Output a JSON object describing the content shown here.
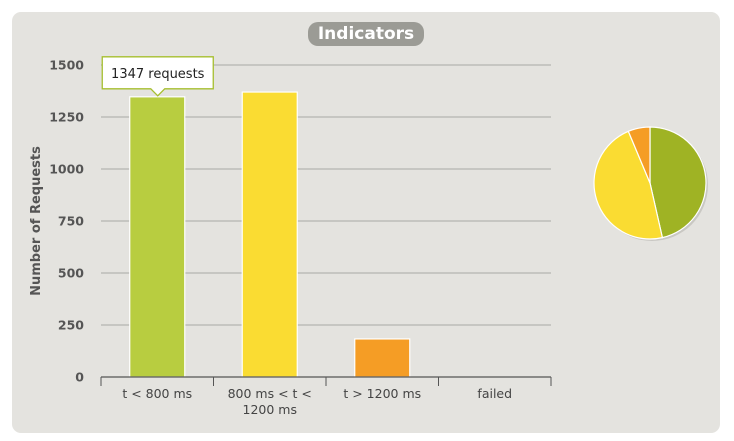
{
  "chart_data": [
    {
      "type": "bar",
      "title": "Indicators",
      "ylabel": "Number of Requests",
      "xlabel": "",
      "ylim": [
        0,
        1500
      ],
      "yticks": [
        0,
        250,
        500,
        750,
        1000,
        1250,
        1500
      ],
      "categories": [
        [
          "t < 800 ms"
        ],
        [
          "800 ms < t <",
          "1200 ms"
        ],
        [
          "t > 1200 ms"
        ],
        [
          "failed"
        ]
      ],
      "values": [
        1347,
        1370,
        183,
        0
      ],
      "colors": [
        "#b8cd40",
        "#fadc32",
        "#f59d25",
        "#d63a2e"
      ],
      "grid": true,
      "tooltip": {
        "text": "1347 requests",
        "category_index": 0
      }
    },
    {
      "type": "pie",
      "values": [
        1347,
        1370,
        183,
        0
      ],
      "colors": [
        "#9fb324",
        "#fadc32",
        "#f59d25",
        "#d63a2e"
      ]
    }
  ]
}
